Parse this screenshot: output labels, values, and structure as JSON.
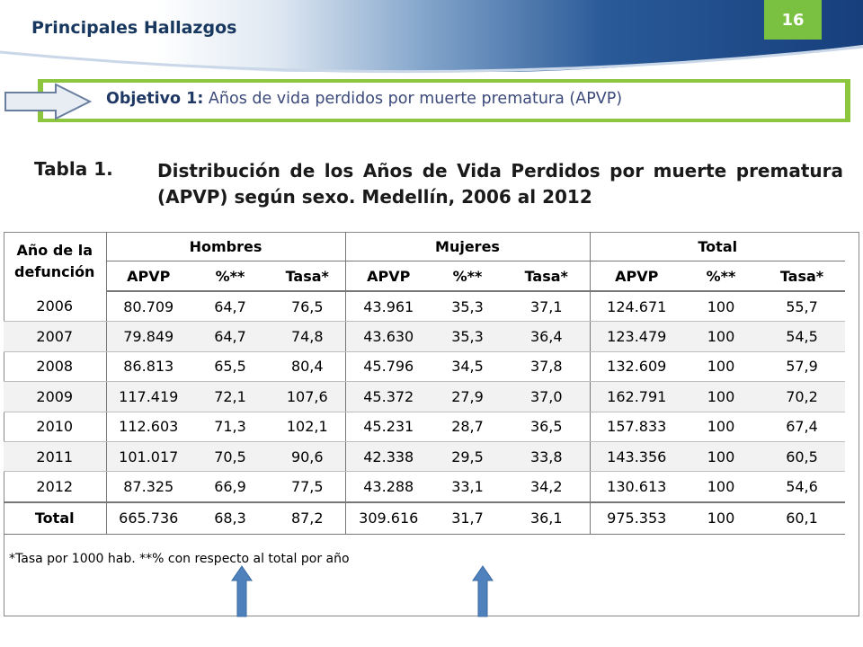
{
  "header": {
    "section_title": "Principales Hallazgos",
    "page_number": "16"
  },
  "objective": {
    "label": "Objetivo 1:",
    "text": "Años de vida perdidos por muerte prematura (APVP)"
  },
  "caption": {
    "number": "Tabla 1.",
    "text": "Distribución de los Años de Vida Perdidos por muerte prematura (APVP) según sexo. Medellín, 2006 al 2012"
  },
  "table": {
    "year_header": "Año de la defunción",
    "groups": [
      "Hombres",
      "Mujeres",
      "Total"
    ],
    "subheaders": [
      "APVP",
      "%**",
      "Tasa*",
      "APVP",
      "%**",
      "Tasa*",
      "APVP",
      "%**",
      "Tasa*"
    ],
    "rows": [
      [
        "2006",
        "80.709",
        "64,7",
        "76,5",
        "43.961",
        "35,3",
        "37,1",
        "124.671",
        "100",
        "55,7"
      ],
      [
        "2007",
        "79.849",
        "64,7",
        "74,8",
        "43.630",
        "35,3",
        "36,4",
        "123.479",
        "100",
        "54,5"
      ],
      [
        "2008",
        "86.813",
        "65,5",
        "80,4",
        "45.796",
        "34,5",
        "37,8",
        "132.609",
        "100",
        "57,9"
      ],
      [
        "2009",
        "117.419",
        "72,1",
        "107,6",
        "45.372",
        "27,9",
        "37,0",
        "162.791",
        "100",
        "70,2"
      ],
      [
        "2010",
        "112.603",
        "71,3",
        "102,1",
        "45.231",
        "28,7",
        "36,5",
        "157.833",
        "100",
        "67,4"
      ],
      [
        "2011",
        "101.017",
        "70,5",
        "90,6",
        "42.338",
        "29,5",
        "33,8",
        "143.356",
        "100",
        "60,5"
      ],
      [
        "2012",
        "87.325",
        "66,9",
        "77,5",
        "43.288",
        "33,1",
        "34,2",
        "130.613",
        "100",
        "54,6"
      ]
    ],
    "total": [
      "Total",
      "665.736",
      "68,3",
      "87,2",
      "309.616",
      "31,7",
      "36,1",
      "975.353",
      "100",
      "60,1"
    ],
    "note": "*Tasa por 1000 hab. **% con respecto al total por año"
  },
  "colors": {
    "accent_green": "#8cc63f",
    "header_blue": "#17375e",
    "arrow_blue": "#4f81bd"
  }
}
